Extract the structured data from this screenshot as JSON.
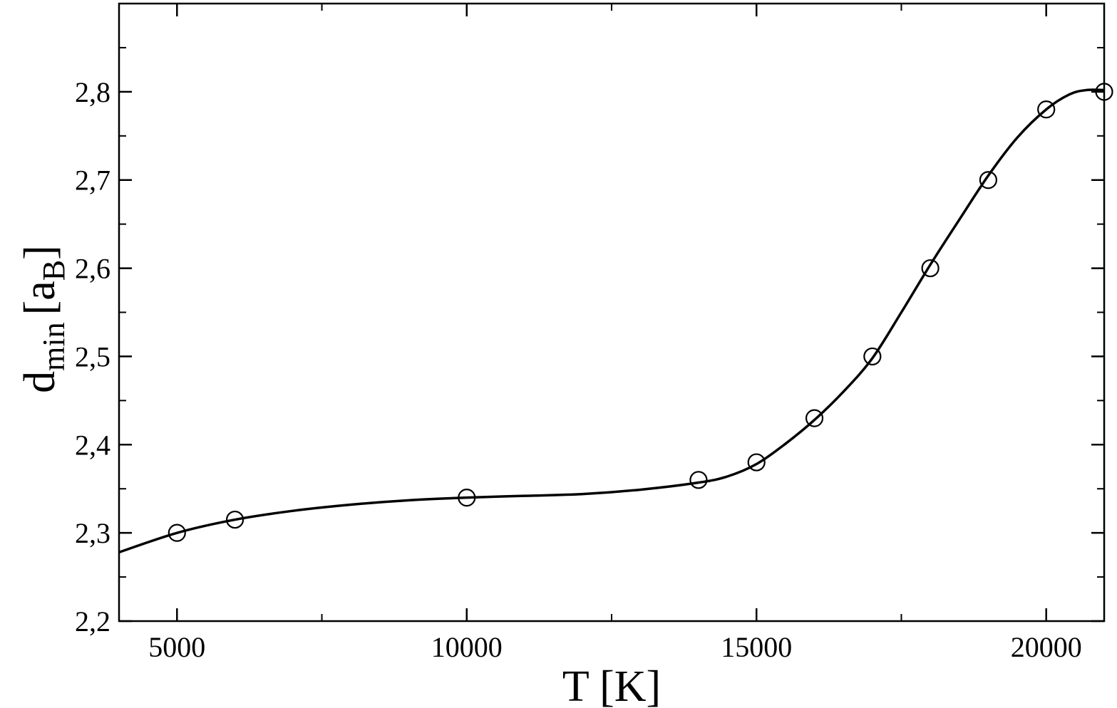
{
  "chart_data": {
    "type": "scatter",
    "xlabel": "T [K]",
    "ylabel": {
      "main": "d",
      "subscript": "min",
      "unit_open": "[a",
      "unit_subscript": "B",
      "unit_close": "]"
    },
    "xlim": [
      4000,
      21000
    ],
    "ylim": [
      2.2,
      2.9
    ],
    "x_major_ticks": [
      5000,
      10000,
      15000,
      20000
    ],
    "x_tick_labels": [
      "5000",
      "10000",
      "15000",
      "20000"
    ],
    "x_minor_ticks": [
      7500,
      12500,
      17500
    ],
    "y_major_ticks": [
      2.2,
      2.3,
      2.4,
      2.5,
      2.6,
      2.7,
      2.8
    ],
    "y_tick_labels": [
      "2,2",
      "2,3",
      "2,4",
      "2,5",
      "2,6",
      "2,7",
      "2,8"
    ],
    "y_minor_ticks": [
      2.25,
      2.35,
      2.45,
      2.55,
      2.65,
      2.75,
      2.85
    ],
    "grid": false,
    "series": [
      {
        "style": "markers",
        "marker": "open-circle",
        "color": "#000000",
        "points": [
          {
            "x": 5000,
            "y": 2.3
          },
          {
            "x": 6000,
            "y": 2.315
          },
          {
            "x": 10000,
            "y": 2.34
          },
          {
            "x": 14000,
            "y": 2.36
          },
          {
            "x": 15000,
            "y": 2.38
          },
          {
            "x": 16000,
            "y": 2.43
          },
          {
            "x": 17000,
            "y": 2.5
          },
          {
            "x": 18000,
            "y": 2.6
          },
          {
            "x": 19000,
            "y": 2.7
          },
          {
            "x": 20000,
            "y": 2.78
          },
          {
            "x": 21000,
            "y": 2.8
          }
        ]
      },
      {
        "style": "line",
        "color": "#000000",
        "points": [
          {
            "x": 4000,
            "y": 2.278
          },
          {
            "x": 5000,
            "y": 2.3
          },
          {
            "x": 6000,
            "y": 2.315
          },
          {
            "x": 7000,
            "y": 2.325
          },
          {
            "x": 8000,
            "y": 2.332
          },
          {
            "x": 9000,
            "y": 2.337
          },
          {
            "x": 10000,
            "y": 2.34
          },
          {
            "x": 11000,
            "y": 2.342
          },
          {
            "x": 12000,
            "y": 2.344
          },
          {
            "x": 13000,
            "y": 2.349
          },
          {
            "x": 14000,
            "y": 2.357
          },
          {
            "x": 14500,
            "y": 2.364
          },
          {
            "x": 15000,
            "y": 2.378
          },
          {
            "x": 15500,
            "y": 2.401
          },
          {
            "x": 16000,
            "y": 2.428
          },
          {
            "x": 16500,
            "y": 2.46
          },
          {
            "x": 17000,
            "y": 2.498
          },
          {
            "x": 17500,
            "y": 2.55
          },
          {
            "x": 18000,
            "y": 2.604
          },
          {
            "x": 18500,
            "y": 2.655
          },
          {
            "x": 19000,
            "y": 2.705
          },
          {
            "x": 19500,
            "y": 2.748
          },
          {
            "x": 20000,
            "y": 2.78
          },
          {
            "x": 20400,
            "y": 2.797
          },
          {
            "x": 20700,
            "y": 2.802
          },
          {
            "x": 21000,
            "y": 2.802
          }
        ]
      }
    ]
  }
}
